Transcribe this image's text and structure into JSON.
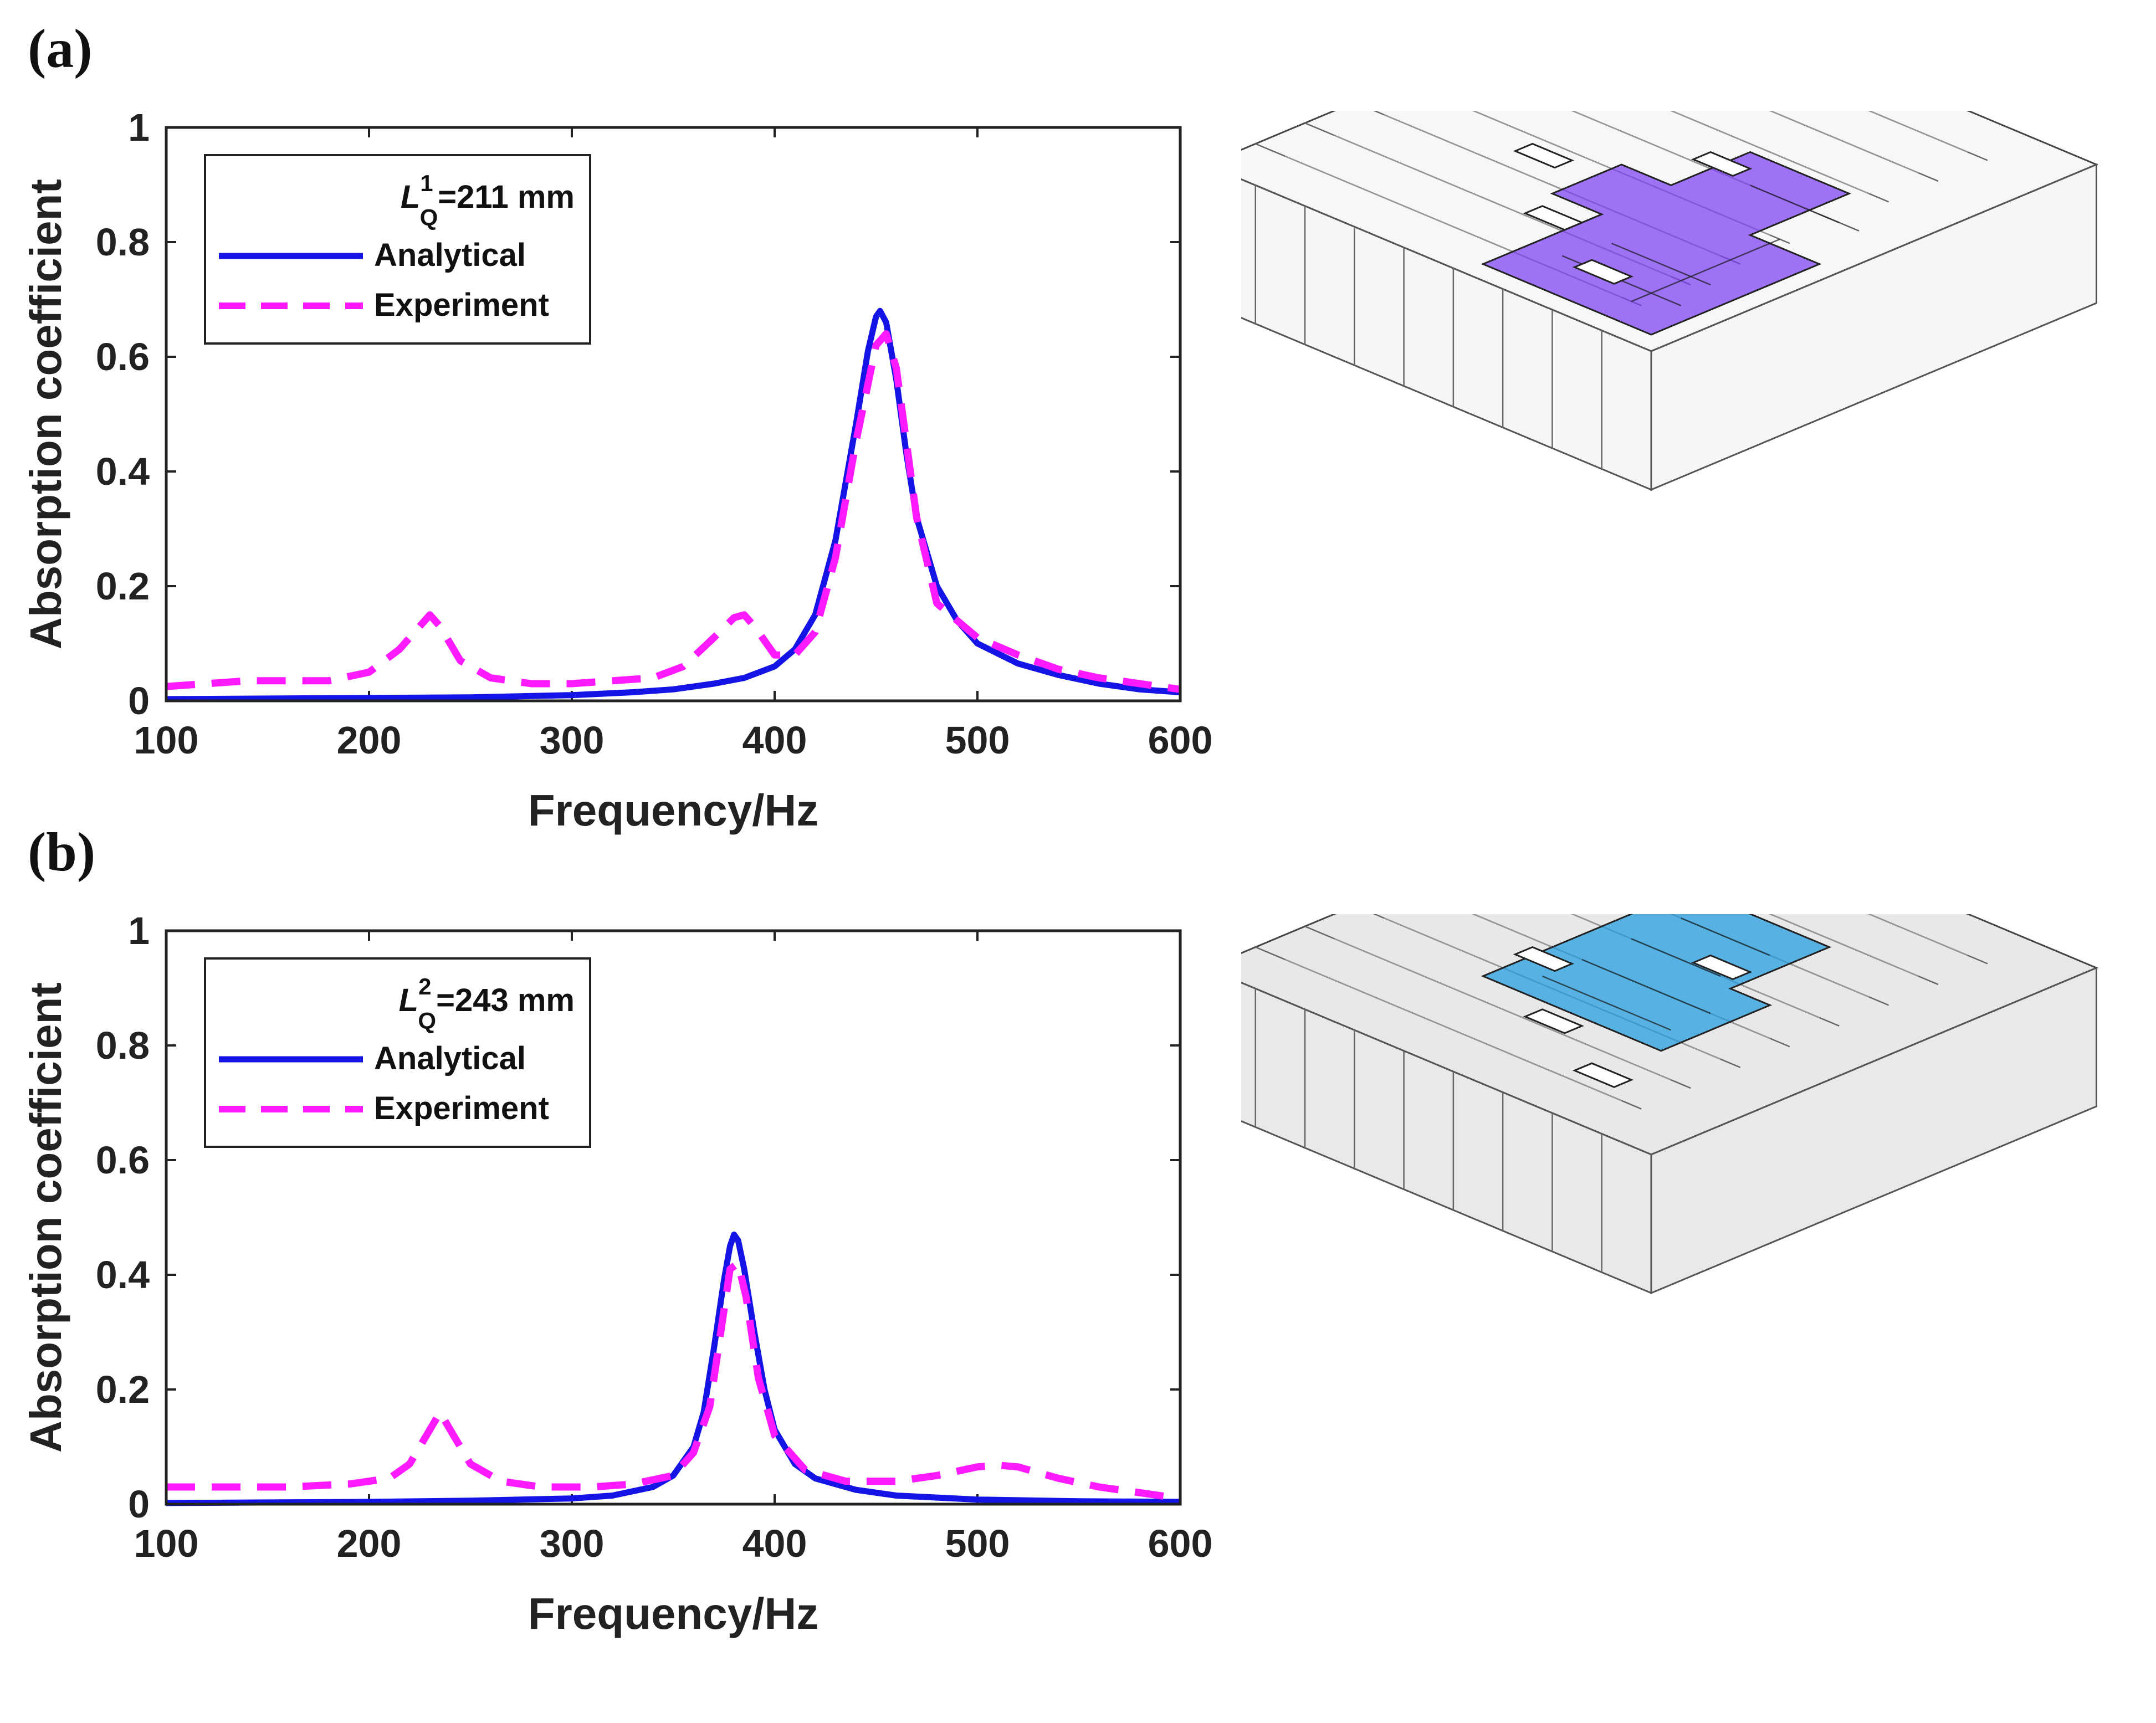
{
  "panels": [
    {
      "label": "(a)",
      "legend_title_main": "L",
      "legend_title_sup": "1",
      "legend_title_sub": "Q",
      "legend_title_rest": "=211 mm",
      "structure_color": "#7b3ff2"
    },
    {
      "label": "(b)",
      "legend_title_main": "L",
      "legend_title_sup": "2",
      "legend_title_sub": "Q",
      "legend_title_rest": "=243 mm",
      "structure_color": "#1e9be0"
    }
  ],
  "chart_data": [
    {
      "type": "line",
      "xlabel": "Frequency/Hz",
      "ylabel": "Absorption coefficient",
      "xlim": [
        100,
        600
      ],
      "ylim": [
        0,
        1
      ],
      "xticks": [
        100,
        200,
        300,
        400,
        500,
        600
      ],
      "yticks": [
        0,
        0.2,
        0.4,
        0.6,
        0.8,
        1
      ],
      "ytick_labels": [
        "0",
        "0.2",
        "0.4",
        "0.6",
        "0.8",
        "1"
      ],
      "series": [
        {
          "name": "Analytical",
          "style": "solid",
          "color": "#1414e6",
          "x": [
            100,
            150,
            200,
            250,
            300,
            330,
            350,
            370,
            385,
            400,
            410,
            420,
            430,
            440,
            446,
            450,
            452,
            455,
            460,
            465,
            470,
            480,
            490,
            500,
            520,
            540,
            560,
            580,
            600
          ],
          "y": [
            0.003,
            0.004,
            0.005,
            0.006,
            0.01,
            0.015,
            0.02,
            0.03,
            0.04,
            0.06,
            0.09,
            0.15,
            0.28,
            0.48,
            0.61,
            0.67,
            0.68,
            0.66,
            0.56,
            0.43,
            0.32,
            0.2,
            0.14,
            0.1,
            0.065,
            0.045,
            0.03,
            0.02,
            0.015
          ]
        },
        {
          "name": "Experiment",
          "style": "dashed",
          "color": "#ff1aff",
          "x": [
            100,
            120,
            140,
            160,
            180,
            200,
            215,
            225,
            230,
            235,
            245,
            260,
            280,
            300,
            320,
            340,
            355,
            370,
            380,
            385,
            390,
            400,
            410,
            420,
            430,
            440,
            450,
            455,
            460,
            470,
            480,
            500,
            520,
            540,
            560,
            580,
            600
          ],
          "y": [
            0.025,
            0.03,
            0.035,
            0.035,
            0.035,
            0.05,
            0.09,
            0.13,
            0.15,
            0.13,
            0.07,
            0.04,
            0.03,
            0.03,
            0.035,
            0.04,
            0.06,
            0.11,
            0.145,
            0.15,
            0.13,
            0.08,
            0.08,
            0.12,
            0.25,
            0.45,
            0.62,
            0.64,
            0.58,
            0.32,
            0.17,
            0.11,
            0.08,
            0.055,
            0.04,
            0.03,
            0.02
          ]
        }
      ]
    },
    {
      "type": "line",
      "xlabel": "Frequency/Hz",
      "ylabel": "Absorption coefficient",
      "xlim": [
        100,
        600
      ],
      "ylim": [
        0,
        1
      ],
      "xticks": [
        100,
        200,
        300,
        400,
        500,
        600
      ],
      "yticks": [
        0,
        0.2,
        0.4,
        0.6,
        0.8,
        1
      ],
      "ytick_labels": [
        "0",
        "0.2",
        "0.4",
        "0.6",
        "0.8",
        "1"
      ],
      "series": [
        {
          "name": "Analytical",
          "style": "solid",
          "color": "#1414e6",
          "x": [
            100,
            150,
            200,
            250,
            300,
            320,
            340,
            350,
            360,
            365,
            370,
            375,
            378,
            380,
            382,
            385,
            390,
            395,
            400,
            410,
            420,
            440,
            460,
            500,
            550,
            600
          ],
          "y": [
            0.002,
            0.003,
            0.004,
            0.006,
            0.01,
            0.015,
            0.03,
            0.05,
            0.1,
            0.16,
            0.27,
            0.39,
            0.45,
            0.47,
            0.46,
            0.41,
            0.3,
            0.2,
            0.13,
            0.07,
            0.045,
            0.025,
            0.015,
            0.008,
            0.005,
            0.004
          ]
        },
        {
          "name": "Experiment",
          "style": "dashed",
          "color": "#ff1aff",
          "x": [
            100,
            130,
            160,
            190,
            210,
            220,
            230,
            235,
            240,
            250,
            265,
            285,
            310,
            330,
            350,
            360,
            368,
            373,
            378,
            382,
            386,
            392,
            400,
            415,
            435,
            460,
            480,
            500,
            510,
            520,
            540,
            560,
            580,
            600
          ],
          "y": [
            0.03,
            0.03,
            0.03,
            0.035,
            0.045,
            0.07,
            0.13,
            0.16,
            0.13,
            0.07,
            0.04,
            0.03,
            0.03,
            0.035,
            0.05,
            0.09,
            0.17,
            0.29,
            0.41,
            0.42,
            0.36,
            0.22,
            0.12,
            0.06,
            0.04,
            0.04,
            0.05,
            0.065,
            0.068,
            0.065,
            0.045,
            0.03,
            0.02,
            0.01
          ]
        }
      ]
    }
  ]
}
